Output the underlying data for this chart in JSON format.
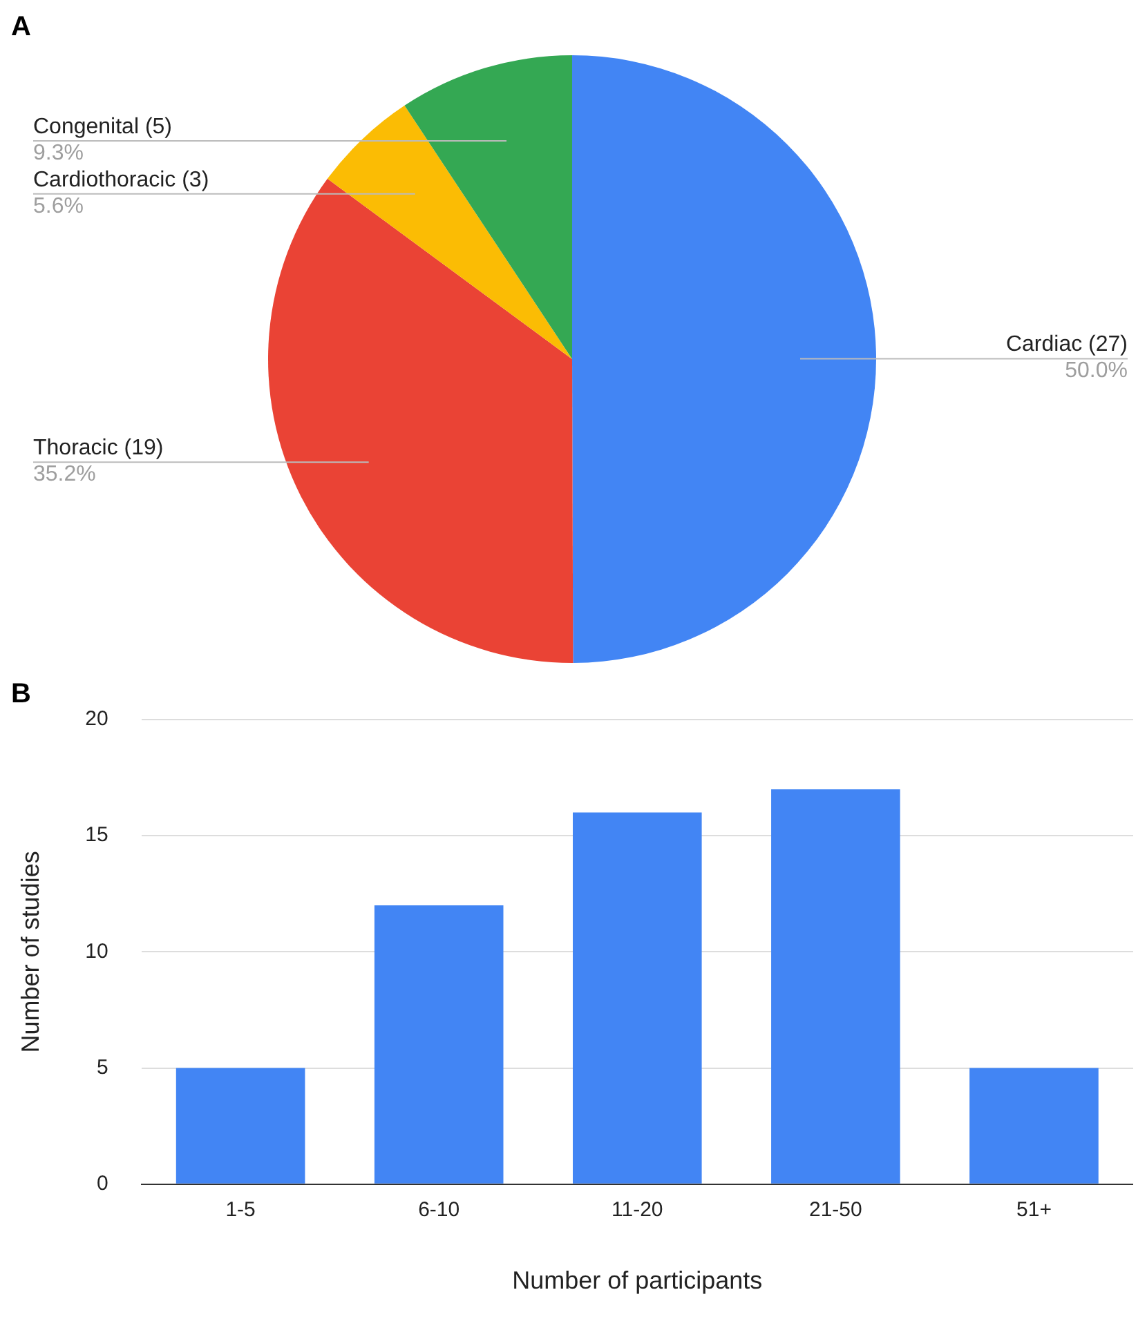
{
  "chart_data": [
    {
      "type": "pie",
      "title": "A",
      "categories": [
        "Cardiac (27)",
        "Thoracic (19)",
        "Cardiothoracic (3)",
        "Congenital (5)"
      ],
      "values": [
        50.0,
        35.2,
        5.6,
        9.3
      ],
      "colors": [
        "#4285f4",
        "#ea4335",
        "#fbbc04",
        "#34a853"
      ],
      "value_labels": [
        "50.0%",
        "35.2%",
        "5.6%",
        "9.3%"
      ]
    },
    {
      "type": "bar",
      "title": "B",
      "categories": [
        "1-5",
        "6-10",
        "11-20",
        "21-50",
        "51+"
      ],
      "values": [
        5,
        12,
        16,
        17,
        5
      ],
      "color": "#4285f4",
      "ylim": [
        0,
        20
      ],
      "yticks": [
        0,
        5,
        10,
        15,
        20
      ],
      "grid": "y",
      "xlabel": "Number of participants",
      "ylabel": "Number of studies"
    }
  ]
}
